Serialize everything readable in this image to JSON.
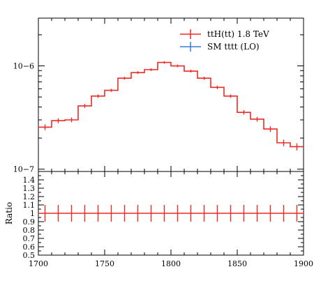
{
  "chart_data": {
    "type": "line",
    "x_edges": [
      1700,
      1710,
      1720,
      1730,
      1740,
      1750,
      1760,
      1770,
      1780,
      1790,
      1800,
      1810,
      1820,
      1830,
      1840,
      1850,
      1860,
      1870,
      1880,
      1890,
      1900
    ],
    "xlim": [
      1700,
      1900
    ],
    "x_ticks": [
      {
        "value": 1700,
        "label": "1700"
      },
      {
        "value": 1750,
        "label": "1750"
      },
      {
        "value": 1800,
        "label": "1800"
      },
      {
        "value": 1850,
        "label": "1850"
      },
      {
        "value": 1900,
        "label": "1900"
      }
    ],
    "main": {
      "yscale": "log",
      "ylim": [
        9.5e-08,
        2.9e-06
      ],
      "y_ticks": [
        {
          "value": 1e-06,
          "label": "10−6"
        },
        {
          "value": 1e-07,
          "label": "10−7"
        }
      ]
    },
    "series": [
      {
        "name": "ttH(tt) 1.8 TeV",
        "color": "#ee2a24",
        "values": [
          2.55e-07,
          2.95e-07,
          3e-07,
          4.1e-07,
          5.1e-07,
          5.8e-07,
          7.6e-07,
          8.6e-07,
          9.2e-07,
          1.08e-06,
          1e-06,
          8.9e-07,
          7.6e-07,
          6.2e-07,
          5.1e-07,
          3.55e-07,
          3.05e-07,
          2.45e-07,
          1.8e-07,
          1.65e-07
        ],
        "errors": [
          1.6e-08,
          1.6e-08,
          1.6e-08,
          1.8e-08,
          2e-08,
          2e-08,
          2.4e-08,
          2.6e-08,
          2.8e-08,
          3e-08,
          3e-08,
          2.8e-08,
          2.6e-08,
          2.4e-08,
          2e-08,
          1.8e-08,
          1.6e-08,
          1.5e-08,
          1.3e-08,
          1.3e-08
        ]
      },
      {
        "name": "SM tttt (LO)",
        "color": "#3a7bd5",
        "values": [],
        "errors": []
      }
    ],
    "ratio": {
      "ylabel": "Ratio",
      "ylim": [
        0.5,
        1.5
      ],
      "values": [
        1,
        1,
        1,
        1,
        1,
        1,
        1,
        1,
        1,
        1,
        1,
        1,
        1,
        1,
        1,
        1,
        1,
        1,
        1,
        1
      ],
      "errors": [
        0.1,
        0.1,
        0.1,
        0.1,
        0.1,
        0.1,
        0.1,
        0.1,
        0.1,
        0.1,
        0.1,
        0.1,
        0.1,
        0.1,
        0.1,
        0.1,
        0.1,
        0.1,
        0.1,
        0.1
      ],
      "y_ticks": [
        {
          "value": 0.5,
          "label": "0.5"
        },
        {
          "value": 0.6,
          "label": "0.6"
        },
        {
          "value": 0.7,
          "label": "0.7"
        },
        {
          "value": 0.8,
          "label": "0.8"
        },
        {
          "value": 0.9,
          "label": "0.9"
        },
        {
          "value": 1.0,
          "label": "1"
        },
        {
          "value": 1.1,
          "label": "1.1"
        },
        {
          "value": 1.2,
          "label": "1.2"
        },
        {
          "value": 1.3,
          "label": "1.3"
        },
        {
          "value": 1.4,
          "label": "1.4"
        }
      ]
    },
    "legend": {
      "placement": "top-right"
    },
    "grid": false
  }
}
